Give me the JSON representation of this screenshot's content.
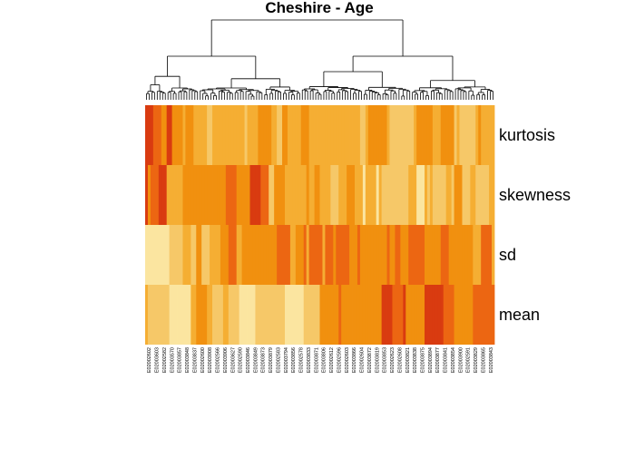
{
  "chart_data": {
    "type": "heatmap",
    "title": "Cheshire - Age",
    "rows": [
      "kurtosis",
      "skewness",
      "sd",
      "mean"
    ],
    "dendrogram": "columns",
    "palette": [
      "#d93b10",
      "#ec6612",
      "#f1900f",
      "#f5ae33",
      "#f6c868",
      "#fbe5a0"
    ],
    "columns": [
      "E02002602",
      "E02003603",
      "E02002582",
      "E02003570",
      "E02003857",
      "E02003848",
      "E02003837",
      "E02002600",
      "E02003908",
      "E02002566",
      "E02003906",
      "E02003627",
      "E02002590",
      "E02003846",
      "E02003849",
      "E02003873",
      "E02003879",
      "E02002583",
      "E02003794",
      "E02003856",
      "E02002578",
      "E02003833",
      "E02003871",
      "E02003806",
      "E02002612",
      "E02002596",
      "E02002603",
      "E02003866",
      "E02002604",
      "E02003872",
      "E02003819",
      "E02003853",
      "E02002623",
      "E02002608",
      "E02003821",
      "E02003838",
      "E02003875",
      "E02003894",
      "E02003877",
      "E02003841",
      "E02003854",
      "E02003900",
      "E02002591",
      "E02003829",
      "E02003865",
      "E02003843"
    ]
  }
}
